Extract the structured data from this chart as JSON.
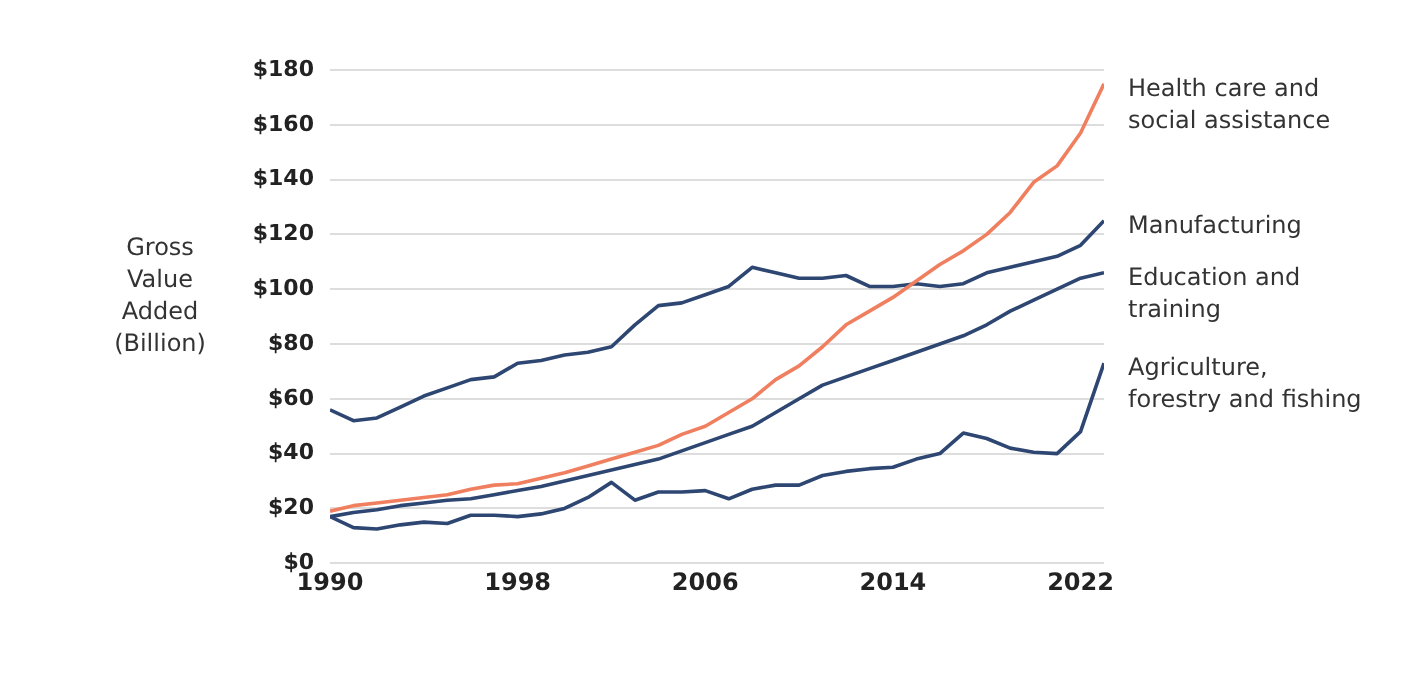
{
  "chart_data": {
    "type": "line",
    "ylabel": "Gross Value Added (Billion)",
    "x": [
      1990,
      1991,
      1992,
      1993,
      1994,
      1995,
      1996,
      1997,
      1998,
      1999,
      2000,
      2001,
      2002,
      2003,
      2004,
      2005,
      2006,
      2007,
      2008,
      2009,
      2010,
      2011,
      2012,
      2013,
      2014,
      2015,
      2016,
      2017,
      2018,
      2019,
      2020,
      2021,
      2022,
      2023
    ],
    "xlim": [
      1990,
      2023
    ],
    "xticks": [
      1990,
      1998,
      2006,
      2014,
      2022
    ],
    "ylim": [
      0,
      180
    ],
    "yticks": [
      {
        "value": 0,
        "label": "$0"
      },
      {
        "value": 20,
        "label": "$20"
      },
      {
        "value": 40,
        "label": "$40"
      },
      {
        "value": 60,
        "label": "$60"
      },
      {
        "value": 80,
        "label": "$80"
      },
      {
        "value": 100,
        "label": "$100"
      },
      {
        "value": 120,
        "label": "$120"
      },
      {
        "value": 140,
        "label": "$140"
      },
      {
        "value": 160,
        "label": "$160"
      },
      {
        "value": 180,
        "label": "$180"
      }
    ],
    "grid": "y",
    "legend": false,
    "marker": "none",
    "line_style": "solid",
    "series": [
      {
        "name": "Health care and social assistance",
        "color": "#f07f5f",
        "values": [
          19,
          21,
          22,
          23,
          24,
          25,
          27,
          28.5,
          29,
          31,
          33,
          35.5,
          38,
          40.5,
          43,
          47,
          50,
          55,
          60,
          67,
          72,
          79,
          87,
          92,
          97,
          103,
          109,
          114,
          120,
          128,
          139,
          145,
          157,
          175
        ]
      },
      {
        "name": "Manufacturing",
        "color": "#2e4672",
        "values": [
          56,
          52,
          53,
          57,
          61,
          64,
          67,
          68,
          73,
          74,
          76,
          77,
          79,
          87,
          94,
          95,
          98,
          101,
          108,
          106,
          104,
          104,
          105,
          101,
          101,
          102,
          101,
          102,
          106,
          108,
          110,
          112,
          116,
          125
        ]
      },
      {
        "name": "Education and training",
        "color": "#2e4672",
        "values": [
          17,
          18.5,
          19.5,
          21,
          22,
          23,
          23.5,
          25,
          26.5,
          28,
          30,
          32,
          34,
          36,
          38,
          41,
          44,
          47,
          50,
          55,
          60,
          65,
          68,
          71,
          74,
          77,
          80,
          83,
          87,
          92,
          96,
          100,
          104,
          106
        ]
      },
      {
        "name": "Agriculture, forestry and fishing",
        "color": "#2e4672",
        "values": [
          17,
          13,
          12.5,
          14,
          15,
          14.5,
          17.5,
          17.5,
          17,
          18,
          20,
          24,
          29.5,
          23,
          26,
          26,
          26.5,
          23.5,
          27,
          28.5,
          28.5,
          32,
          33.5,
          34.5,
          35,
          38,
          40,
          47.5,
          45.5,
          42,
          40.5,
          40,
          48,
          73
        ]
      }
    ]
  }
}
